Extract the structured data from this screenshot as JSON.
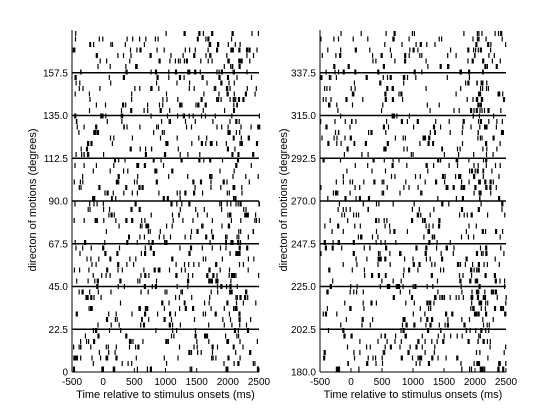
{
  "chart_data": [
    {
      "type": "raster",
      "title": "",
      "xlabel": "Time relative to stimulus onsets (ms)",
      "ylabel": "directon of motions (degrees)",
      "xlim": [
        -500,
        2500
      ],
      "ylim": [
        0,
        180
      ],
      "x_ticks": [
        "-500",
        "0",
        "500",
        "1000",
        "1500",
        "2000",
        "2500"
      ],
      "y_ticks": [
        "0",
        "22.5",
        "45.0",
        "67.5",
        "90.0",
        "112.5",
        "135.0",
        "157.5"
      ],
      "separators": [
        22.5,
        45.0,
        67.5,
        90.0,
        112.5,
        135.0,
        157.5
      ],
      "spike_color": "#000000",
      "spike_density": "dense from -500 to 2500 ms, slight increase near 2000–2100 ms",
      "grid": false
    },
    {
      "type": "raster",
      "title": "",
      "xlabel": "Time relative to stimulus onsets (ms)",
      "ylabel": "directon of motions (degrees)",
      "xlim": [
        -500,
        2500
      ],
      "ylim": [
        180,
        360
      ],
      "x_ticks": [
        "-500",
        "0",
        "500",
        "1000",
        "1500",
        "2000",
        "2500"
      ],
      "y_ticks": [
        "180.0",
        "202.5",
        "225.0",
        "247.5",
        "270.0",
        "292.5",
        "315.0",
        "337.5"
      ],
      "separators": [
        202.5,
        225.0,
        247.5,
        270.0,
        292.5,
        315.0,
        337.5
      ],
      "spike_color": "#000000",
      "spike_density": "dense from -500 to 2500 ms, slight increase near 2000–2100 ms",
      "grid": false
    }
  ]
}
